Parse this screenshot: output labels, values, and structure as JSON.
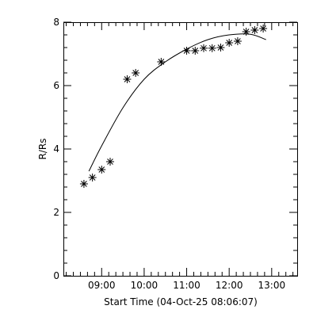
{
  "chart_data": {
    "type": "scatter",
    "title": "",
    "xlabel": "Start Time (04-Oct-25 08:06:07)",
    "ylabel": "R/Rs",
    "xlim": [
      "08:06",
      "13:36"
    ],
    "ylim": [
      0,
      8
    ],
    "x_ticks": [
      "09:00",
      "10:00",
      "11:00",
      "12:00",
      "13:00"
    ],
    "y_ticks": [
      "0",
      "2",
      "4",
      "6",
      "8"
    ],
    "grid": false,
    "legend": "none",
    "marker": "asterisk",
    "series": [
      {
        "points": [
          {
            "x": "08:35",
            "y": 2.9
          },
          {
            "x": "08:47",
            "y": 3.1
          },
          {
            "x": "09:00",
            "y": 3.35
          },
          {
            "x": "09:12",
            "y": 3.6
          },
          {
            "x": "09:36",
            "y": 6.2
          },
          {
            "x": "09:48",
            "y": 6.4
          },
          {
            "x": "10:24",
            "y": 6.75
          },
          {
            "x": "11:00",
            "y": 7.1
          },
          {
            "x": "11:12",
            "y": 7.1
          },
          {
            "x": "11:24",
            "y": 7.18
          },
          {
            "x": "11:36",
            "y": 7.18
          },
          {
            "x": "11:48",
            "y": 7.2
          },
          {
            "x": "12:00",
            "y": 7.35
          },
          {
            "x": "12:12",
            "y": 7.4
          },
          {
            "x": "12:24",
            "y": 7.7
          },
          {
            "x": "12:36",
            "y": 7.75
          },
          {
            "x": "12:48",
            "y": 7.8
          }
        ]
      }
    ],
    "fit_curve": [
      {
        "x": "08:42",
        "y": 3.3
      },
      {
        "x": "09:00",
        "y": 4.1
      },
      {
        "x": "09:30",
        "y": 5.3
      },
      {
        "x": "10:00",
        "y": 6.2
      },
      {
        "x": "10:30",
        "y": 6.75
      },
      {
        "x": "11:00",
        "y": 7.15
      },
      {
        "x": "11:30",
        "y": 7.45
      },
      {
        "x": "12:00",
        "y": 7.6
      },
      {
        "x": "12:30",
        "y": 7.62
      },
      {
        "x": "12:52",
        "y": 7.45
      }
    ]
  }
}
